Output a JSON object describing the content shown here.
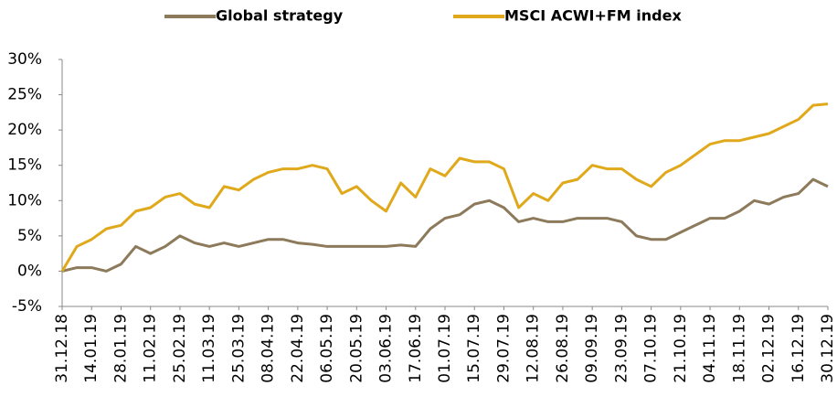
{
  "chart_data": {
    "type": "line",
    "categories": [
      "31.12.18",
      null,
      "14.01.19",
      null,
      "28.01.19",
      null,
      "11.02.19",
      null,
      "25.02.19",
      null,
      "11.03.19",
      null,
      "25.03.19",
      null,
      "08.04.19",
      null,
      "22.04.19",
      null,
      "06.05.19",
      null,
      "20.05.19",
      null,
      "03.06.19",
      null,
      "17.06.19",
      null,
      "01.07.19",
      null,
      "15.07.19",
      null,
      "29.07.19",
      null,
      "12.08.19",
      null,
      "26.08.19",
      null,
      "09.09.19",
      null,
      "23.09.19",
      null,
      "07.10.19",
      null,
      "21.10.19",
      null,
      "04.11.19",
      null,
      "18.11.19",
      null,
      "02.12.19",
      null,
      "16.12.19",
      null,
      "30.12.19"
    ],
    "series": [
      {
        "name": "Global strategy",
        "color": "#8c7a5b",
        "values": [
          0,
          0.5,
          0.5,
          0,
          1,
          3.5,
          2.5,
          3.5,
          5,
          4,
          3.5,
          4,
          3.5,
          4,
          4.5,
          4.5,
          4,
          3.8,
          3.5,
          3.5,
          3.5,
          3.5,
          3.5,
          3.7,
          3.5,
          6,
          7.5,
          8,
          9.5,
          10,
          9,
          7,
          7.5,
          7,
          7,
          7.5,
          7.5,
          7.5,
          7,
          5,
          4.5,
          4.5,
          5.5,
          6.5,
          7.5,
          7.5,
          8.5,
          10,
          9.5,
          10.5,
          11,
          13,
          12
        ]
      },
      {
        "name": "MSCI ACWI+FM index",
        "color": "#e0a91b",
        "values": [
          0,
          3.5,
          4.5,
          6,
          6.5,
          8.5,
          9,
          10.5,
          11,
          9.5,
          9,
          12,
          11.5,
          13,
          14,
          14.5,
          14.5,
          15,
          14.5,
          11,
          12,
          10,
          8.5,
          12.5,
          10.5,
          14.5,
          13.5,
          16,
          15.5,
          15.5,
          14.5,
          9,
          11,
          10,
          12.5,
          13,
          15,
          14.5,
          14.5,
          13,
          12,
          14,
          15,
          16.5,
          18,
          18.5,
          18.5,
          19,
          19.5,
          20.5,
          21.5,
          23.5,
          23.7
        ]
      }
    ],
    "ylim": [
      -5,
      30
    ],
    "yticks": [
      {
        "value": -5,
        "label": "-5%"
      },
      {
        "value": 0,
        "label": "0%"
      },
      {
        "value": 5,
        "label": "5%"
      },
      {
        "value": 10,
        "label": "10%"
      },
      {
        "value": 15,
        "label": "15%"
      },
      {
        "value": 20,
        "label": "20%"
      },
      {
        "value": 25,
        "label": "25%"
      },
      {
        "value": 30,
        "label": "30%"
      }
    ],
    "legend": "top"
  }
}
